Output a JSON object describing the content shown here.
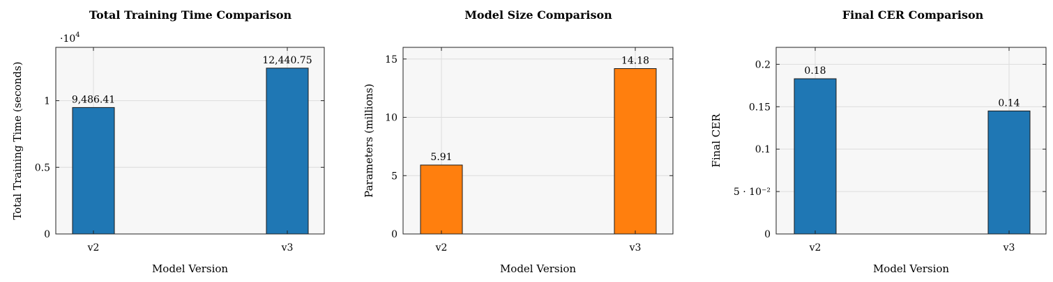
{
  "chart_data": [
    {
      "type": "bar",
      "title": "Total Training Time Comparison",
      "xlabel": "Model Version",
      "ylabel": "Total Training Time (seconds)",
      "categories": [
        "v2",
        "v3"
      ],
      "values": [
        9486.41,
        12440.75
      ],
      "value_labels": [
        "9,486.41",
        "12,440.75"
      ],
      "ylim": [
        0,
        14000
      ],
      "yticks": [
        0,
        5000,
        10000
      ],
      "ytick_labels": [
        "0",
        "0.5",
        "1"
      ],
      "scale_label_base": "·10",
      "scale_label_exp": "4",
      "bar_color": "#1f77b4",
      "grid": true
    },
    {
      "type": "bar",
      "title": "Model Size Comparison",
      "xlabel": "Model Version",
      "ylabel": "Parameters (millions)",
      "categories": [
        "v2",
        "v3"
      ],
      "values": [
        5.91,
        14.18
      ],
      "value_labels": [
        "5.91",
        "14.18"
      ],
      "ylim": [
        0,
        16
      ],
      "yticks": [
        0,
        5,
        10,
        15
      ],
      "ytick_labels": [
        "0",
        "5",
        "10",
        "15"
      ],
      "bar_color": "#ff7f0e",
      "grid": true
    },
    {
      "type": "bar",
      "title": "Final CER Comparison",
      "xlabel": "Model Version",
      "ylabel": "Final CER",
      "categories": [
        "v2",
        "v3"
      ],
      "values": [
        0.183,
        0.145
      ],
      "value_labels": [
        "0.18",
        "0.14"
      ],
      "ylim": [
        0,
        0.22
      ],
      "yticks": [
        0,
        0.05,
        0.1,
        0.15,
        0.2
      ],
      "ytick_labels": [
        "0",
        "5 · 10⁻²",
        "0.1",
        "0.15",
        "0.2"
      ],
      "bar_color": "#1f77b4",
      "grid": true
    }
  ]
}
